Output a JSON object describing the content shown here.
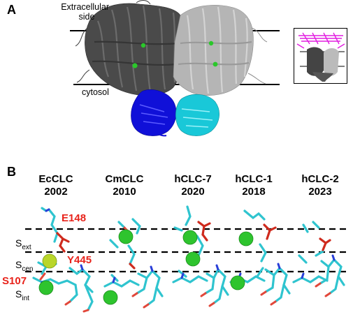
{
  "panel_a": {
    "letter": "A",
    "extracellular_label_line1": "Extracellular",
    "extracellular_label_line2": "side",
    "cytosol_label": "cytosol",
    "colors": {
      "subunit_left": "#4a4a4a",
      "subunit_right": "#b5b5b5",
      "domain_left": "#1010d8",
      "domain_right": "#19c8d8",
      "inset_accent": "#e21ee0",
      "chloride": "#2ac82a"
    }
  },
  "panel_b": {
    "letter": "B",
    "columns": [
      {
        "name": "EcCLC",
        "year": "2002"
      },
      {
        "name": "CmCLC",
        "year": "2010"
      },
      {
        "name": "hCLC-7",
        "year": "2020"
      },
      {
        "name": "hCLC-1",
        "year": "2018"
      },
      {
        "name": "hCLC-2",
        "year": "2023"
      }
    ],
    "residues": {
      "glu": "E148",
      "tyr": "Y445",
      "ser": "S107"
    },
    "sites": [
      {
        "base": "S",
        "sub": "ext"
      },
      {
        "base": "S",
        "sub": "cen"
      },
      {
        "base": "S",
        "sub": "int"
      }
    ],
    "colors": {
      "stick": "#2fc4cf",
      "oxygen": "#e2473a",
      "nitrogen": "#2a3fd8",
      "highlight": "#cf2a1d",
      "ion": "#2ec42e",
      "ion_yellow": "#b9d62a",
      "label_red": "#e8231b"
    }
  }
}
